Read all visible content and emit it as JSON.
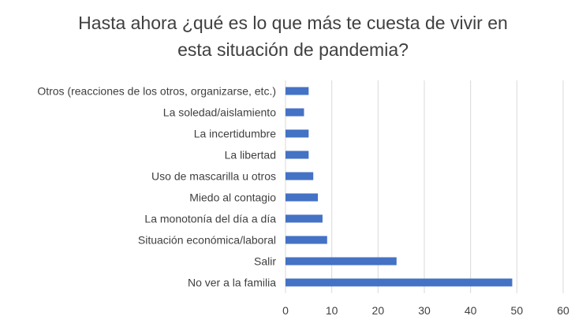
{
  "chart_data": {
    "type": "bar",
    "orientation": "horizontal",
    "title_lines": [
      "Hasta ahora ¿qué es lo que más te cuesta de vivir en",
      "esta situación de pandemia?"
    ],
    "categories": [
      "No ver a la familia",
      "Salir",
      "Situación económica/laboral",
      "La monotonía del día a día",
      "Miedo al contagio",
      "Uso de mascarilla u otros",
      "La libertad",
      "La incertidumbre",
      "La soledad/aislamiento",
      "Otros (reacciones de los otros, organizarse, etc.)"
    ],
    "values": [
      49,
      24,
      9,
      8,
      7,
      6,
      5,
      5,
      4,
      5
    ],
    "xlim": [
      0,
      60
    ],
    "xticks": [
      0,
      10,
      20,
      30,
      40,
      50,
      60
    ],
    "xlabel": "",
    "ylabel": "",
    "grid": "vertical",
    "bar_color": "#4472C4",
    "grid_color": "#D9D9D9"
  }
}
